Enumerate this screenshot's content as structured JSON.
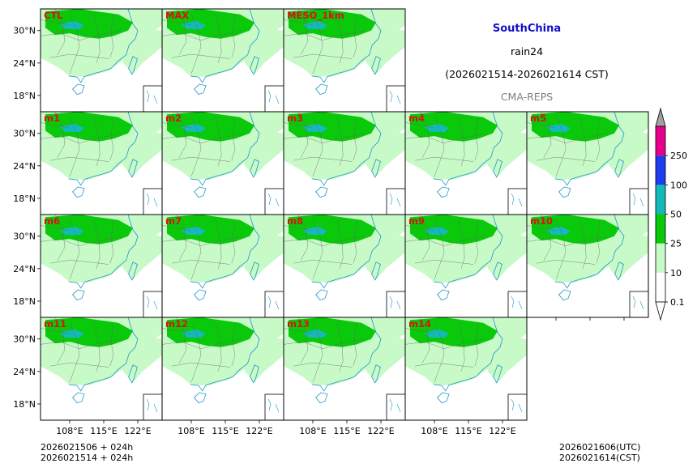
{
  "header": {
    "region": "SouthChina",
    "variable": "rain24",
    "period": "(2026021514-2026021614 CST)",
    "model": "CMA-REPS"
  },
  "panels": [
    {
      "label": "CTL",
      "row": 0,
      "col": 0
    },
    {
      "label": "MAX",
      "row": 0,
      "col": 1
    },
    {
      "label": "MESO_1km",
      "row": 0,
      "col": 2
    },
    {
      "label": "m1",
      "row": 1,
      "col": 0
    },
    {
      "label": "m2",
      "row": 1,
      "col": 1
    },
    {
      "label": "m3",
      "row": 1,
      "col": 2
    },
    {
      "label": "m4",
      "row": 1,
      "col": 3
    },
    {
      "label": "m5",
      "row": 1,
      "col": 4
    },
    {
      "label": "m6",
      "row": 2,
      "col": 0
    },
    {
      "label": "m7",
      "row": 2,
      "col": 1
    },
    {
      "label": "m8",
      "row": 2,
      "col": 2
    },
    {
      "label": "m9",
      "row": 2,
      "col": 3
    },
    {
      "label": "m10",
      "row": 2,
      "col": 4
    },
    {
      "label": "m11",
      "row": 3,
      "col": 0
    },
    {
      "label": "m12",
      "row": 3,
      "col": 1
    },
    {
      "label": "m13",
      "row": 3,
      "col": 2
    },
    {
      "label": "m14",
      "row": 3,
      "col": 3
    }
  ],
  "axes": {
    "lat_ticks": [
      "30°N",
      "24°N",
      "18°N"
    ],
    "lon_ticks": [
      "108°E",
      "115°E",
      "122°E"
    ]
  },
  "colorbar": {
    "levels": [
      "0.1",
      "10",
      "25",
      "50",
      "100",
      "250"
    ],
    "colors": [
      "#c8fac8",
      "#0ac80a",
      "#14b9b9",
      "#1e3cf0",
      "#e6008c",
      "#a0a0a0"
    ]
  },
  "footer": {
    "left_line1": "2026021506  +  024h",
    "left_line2": "2026021514  +  024h",
    "right_line1": "2026021606(UTC)",
    "right_line2": "2026021614(CST)"
  },
  "chart_data": {
    "type": "heatmap",
    "title": "SouthChina rain24 (2026021514-2026021614 CST)",
    "panels": [
      "CTL",
      "MAX",
      "MESO_1km",
      "m1",
      "m2",
      "m3",
      "m4",
      "m5",
      "m6",
      "m7",
      "m8",
      "m9",
      "m10",
      "m11",
      "m12",
      "m13",
      "m14"
    ],
    "x_ticks": [
      "108°E",
      "115°E",
      "122°E"
    ],
    "y_ticks": [
      "30°N",
      "24°N",
      "18°N"
    ],
    "color_levels": [
      0.1,
      10,
      25,
      50,
      100,
      250
    ],
    "xlim": [
      102,
      127
    ],
    "ylim": [
      15,
      34
    ]
  }
}
